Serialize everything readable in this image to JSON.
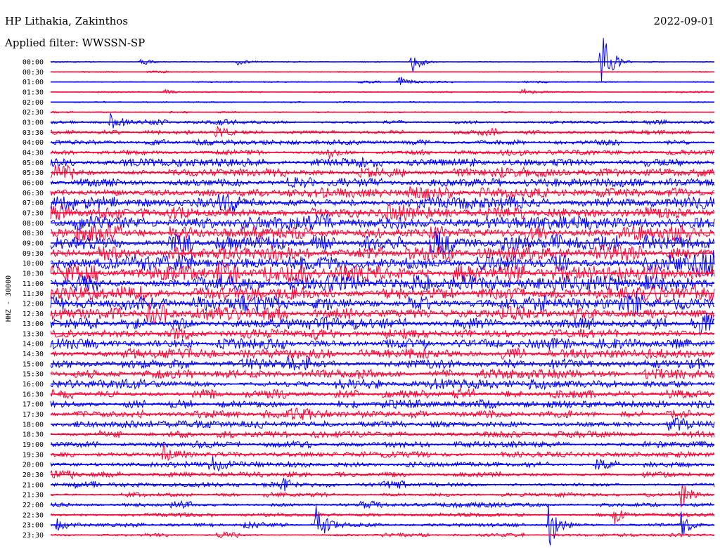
{
  "header": {
    "station": "HP Lithakia, Zakinthos",
    "date": "2022-09-01",
    "filter": "Applied filter: WWSSN-SP"
  },
  "side_label": "HHZ - 30000",
  "chart_data": {
    "type": "line",
    "title": "HP Lithakia, Zakinthos",
    "subtitle": "Applied filter: WWSSN-SP",
    "ylabel": "HHZ - 30000",
    "xlabel": "",
    "grid": false,
    "legend": "none",
    "colors": [
      "#0000ff",
      "#ff0033"
    ],
    "trace_labels": [
      "00:00",
      "00:30",
      "01:00",
      "01:30",
      "02:00",
      "02:30",
      "03:00",
      "03:30",
      "04:00",
      "04:30",
      "05:00",
      "05:30",
      "06:00",
      "06:30",
      "07:00",
      "07:30",
      "08:00",
      "08:30",
      "09:00",
      "09:30",
      "10:00",
      "10:30",
      "11:00",
      "11:30",
      "12:00",
      "12:30",
      "13:00",
      "13:30",
      "14:00",
      "14:30",
      "15:00",
      "15:30",
      "16:00",
      "16:30",
      "17:00",
      "17:30",
      "18:00",
      "18:30",
      "19:00",
      "19:30",
      "20:00",
      "20:30",
      "21:00",
      "21:30",
      "22:00",
      "22:30",
      "23:00",
      "23:30"
    ],
    "noise_amplitude": [
      0.6,
      0.6,
      0.7,
      0.7,
      0.7,
      0.8,
      1.6,
      2.2,
      2.8,
      3.2,
      3.8,
      4.2,
      5.0,
      5.4,
      6.0,
      6.2,
      6.8,
      7.2,
      7.6,
      7.8,
      8.0,
      8.0,
      7.8,
      7.4,
      7.0,
      6.6,
      6.2,
      5.8,
      5.6,
      5.2,
      5.0,
      4.8,
      4.6,
      4.4,
      4.2,
      4.0,
      3.6,
      3.4,
      3.2,
      3.0,
      2.8,
      2.6,
      2.4,
      2.2,
      2.0,
      2.0,
      1.8,
      1.6
    ],
    "events": [
      {
        "trace": "00:00",
        "t": 0.545,
        "amplitude": 16
      },
      {
        "trace": "00:00",
        "t": 0.135,
        "amplitude": 7
      },
      {
        "trace": "00:00",
        "t": 0.28,
        "amplitude": 5
      },
      {
        "trace": "00:00",
        "t": 0.83,
        "amplitude": 60
      },
      {
        "trace": "01:00",
        "t": 0.525,
        "amplitude": 10
      },
      {
        "trace": "01:30",
        "t": 0.17,
        "amplitude": 5
      },
      {
        "trace": "01:30",
        "t": 0.71,
        "amplitude": 5
      },
      {
        "trace": "03:00",
        "t": 0.09,
        "amplitude": 16
      },
      {
        "trace": "03:30",
        "t": 0.25,
        "amplitude": 10
      },
      {
        "trace": "04:30",
        "t": 0.42,
        "amplitude": 10
      },
      {
        "trace": "21:00",
        "t": 0.35,
        "amplitude": 12
      },
      {
        "trace": "21:30",
        "t": 0.95,
        "amplitude": 22
      },
      {
        "trace": "23:00",
        "t": 0.01,
        "amplitude": 14
      },
      {
        "trace": "23:00",
        "t": 0.4,
        "amplitude": 28
      },
      {
        "trace": "23:00",
        "t": 0.75,
        "amplitude": 35
      },
      {
        "trace": "23:00",
        "t": 0.95,
        "amplitude": 18
      },
      {
        "trace": "22:30",
        "t": 0.85,
        "amplitude": 12
      },
      {
        "trace": "19:30",
        "t": 0.17,
        "amplitude": 14
      },
      {
        "trace": "20:00",
        "t": 0.24,
        "amplitude": 14
      }
    ]
  }
}
